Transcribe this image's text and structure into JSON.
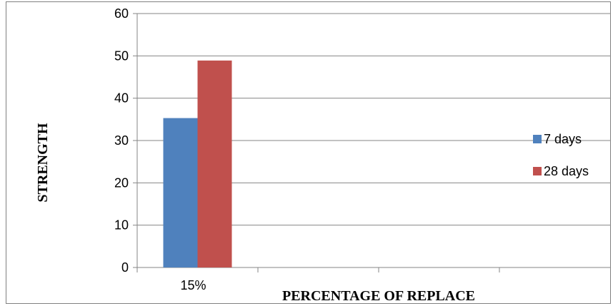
{
  "chart_data": {
    "type": "bar",
    "categories": [
      "15%",
      "",
      "",
      ""
    ],
    "series": [
      {
        "name": "7 days",
        "values": [
          35.3,
          null,
          null,
          null
        ],
        "color": "#4F81BD"
      },
      {
        "name": "28 days",
        "values": [
          48.9,
          null,
          null,
          null
        ],
        "color": "#C0504D"
      }
    ],
    "xlabel": "PERCENTAGE OF REPLACE",
    "ylabel": "STRENGTH",
    "ylim": [
      0,
      60
    ],
    "yticks": [
      0,
      10,
      20,
      30,
      40,
      50,
      60
    ],
    "grid": true,
    "legend_position": "right"
  }
}
